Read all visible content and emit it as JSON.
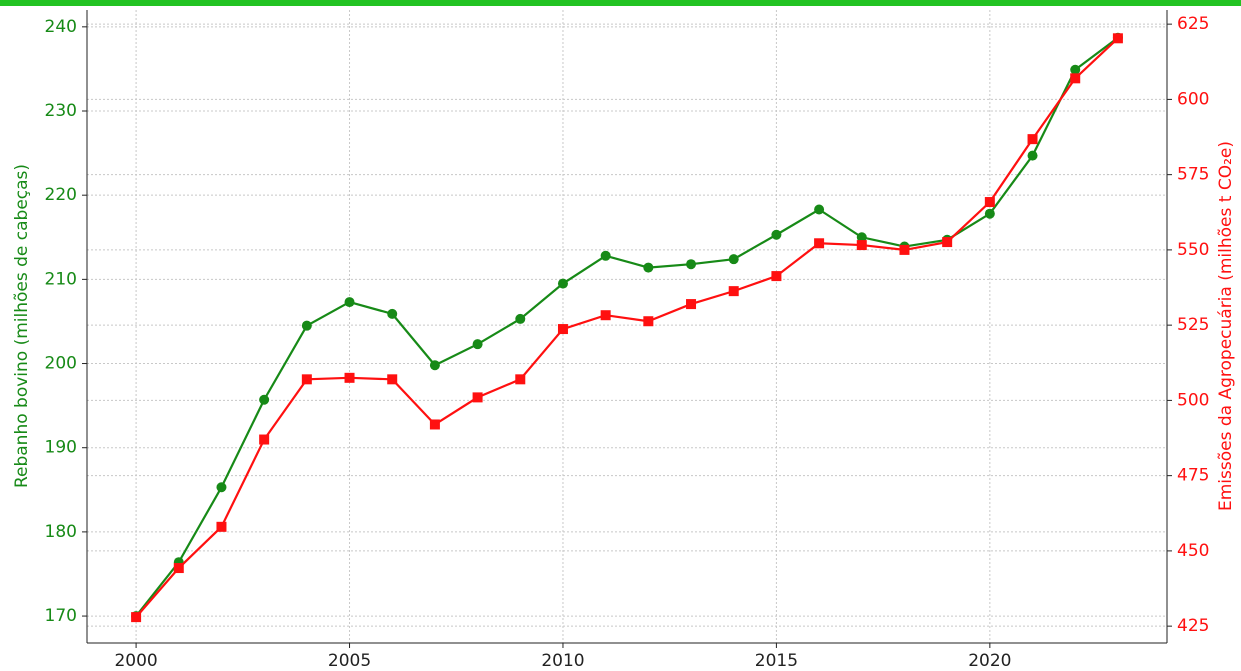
{
  "chart_data": {
    "type": "line",
    "ylabel": "Rebanho bovino (milhões de cabeças)",
    "y2label": "Emissões da Agropecuária (milhões t CO₂e)",
    "x": [
      2000,
      2001,
      2002,
      2003,
      2004,
      2005,
      2006,
      2007,
      2008,
      2009,
      2010,
      2011,
      2012,
      2013,
      2014,
      2015,
      2016,
      2017,
      2018,
      2019,
      2020,
      2021,
      2022,
      2023
    ],
    "series": [
      {
        "color": "#178a17",
        "marker": "circle",
        "axis": "y",
        "values": [
          170,
          176.4,
          185.3,
          195.7,
          204.5,
          207.3,
          205.9,
          199.8,
          202.3,
          205.3,
          209.5,
          212.8,
          211.4,
          211.8,
          212.4,
          215.3,
          218.3,
          215.0,
          213.9,
          214.7,
          217.8,
          224.7,
          234.9,
          238.7
        ]
      },
      {
        "color": "#ff1010",
        "marker": "square",
        "axis": "y2",
        "values": [
          428,
          444.3,
          458,
          487,
          507,
          507.5,
          507,
          492,
          501,
          507,
          523.7,
          528.3,
          526.3,
          532,
          536.3,
          541.3,
          552.2,
          551.6,
          550,
          552.6,
          565.9,
          586.8,
          607,
          620.3
        ]
      }
    ],
    "xlim": [
      1998.85,
      2024.15
    ],
    "xticks": [
      2000,
      2005,
      2010,
      2015,
      2020
    ],
    "ylim": [
      166.8,
      242.0
    ],
    "yticks": [
      170,
      180,
      190,
      200,
      210,
      220,
      230,
      240
    ],
    "y2lim": [
      419.4,
      629.7
    ],
    "y2ticks": [
      425,
      450,
      475,
      500,
      525,
      550,
      575,
      600,
      625
    ],
    "grid": true
  }
}
